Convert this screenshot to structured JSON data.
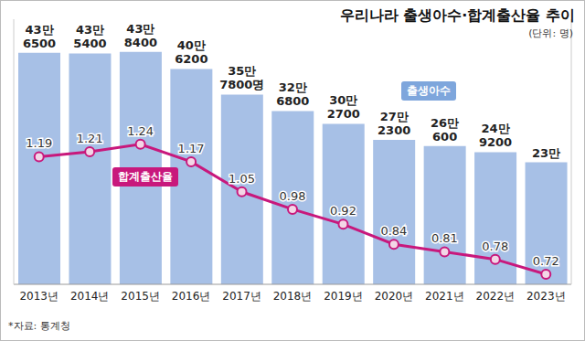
{
  "chart_data": {
    "type": "bar",
    "title": "우리나라 출생아수·합계출산율 추이",
    "subtitle": "(단위: 명)",
    "source": "*자료: 통계청",
    "categories": [
      "2013년",
      "2014년",
      "2015년",
      "2016년",
      "2017년",
      "2018년",
      "2019년",
      "2020년",
      "2021년",
      "2022년",
      "2023년"
    ],
    "series": [
      {
        "name": "출생아수",
        "type": "bar",
        "color": "#a7c0e6",
        "values": [
          436500,
          435400,
          438400,
          406200,
          357800,
          326800,
          302700,
          272300,
          260600,
          249200,
          230000
        ],
        "value_labels": [
          "43만 6500",
          "43만 5400",
          "43만 8400",
          "40만 6200",
          "35만 7800명",
          "32만 6800",
          "30만 2700",
          "27만 2300",
          "26만 600",
          "24만 9200",
          "23만"
        ],
        "data_labels": true
      },
      {
        "name": "합계출산율",
        "type": "line",
        "axis": "y2",
        "color": "#c8187c",
        "marker": "circle",
        "values": [
          1.19,
          1.21,
          1.24,
          1.17,
          1.05,
          0.98,
          0.92,
          0.84,
          0.81,
          0.78,
          0.72
        ],
        "data_labels": true
      }
    ],
    "ylim": [
      0,
      500000
    ],
    "y2lim": [
      0.68,
      1.74
    ],
    "tick_labels": "x"
  }
}
